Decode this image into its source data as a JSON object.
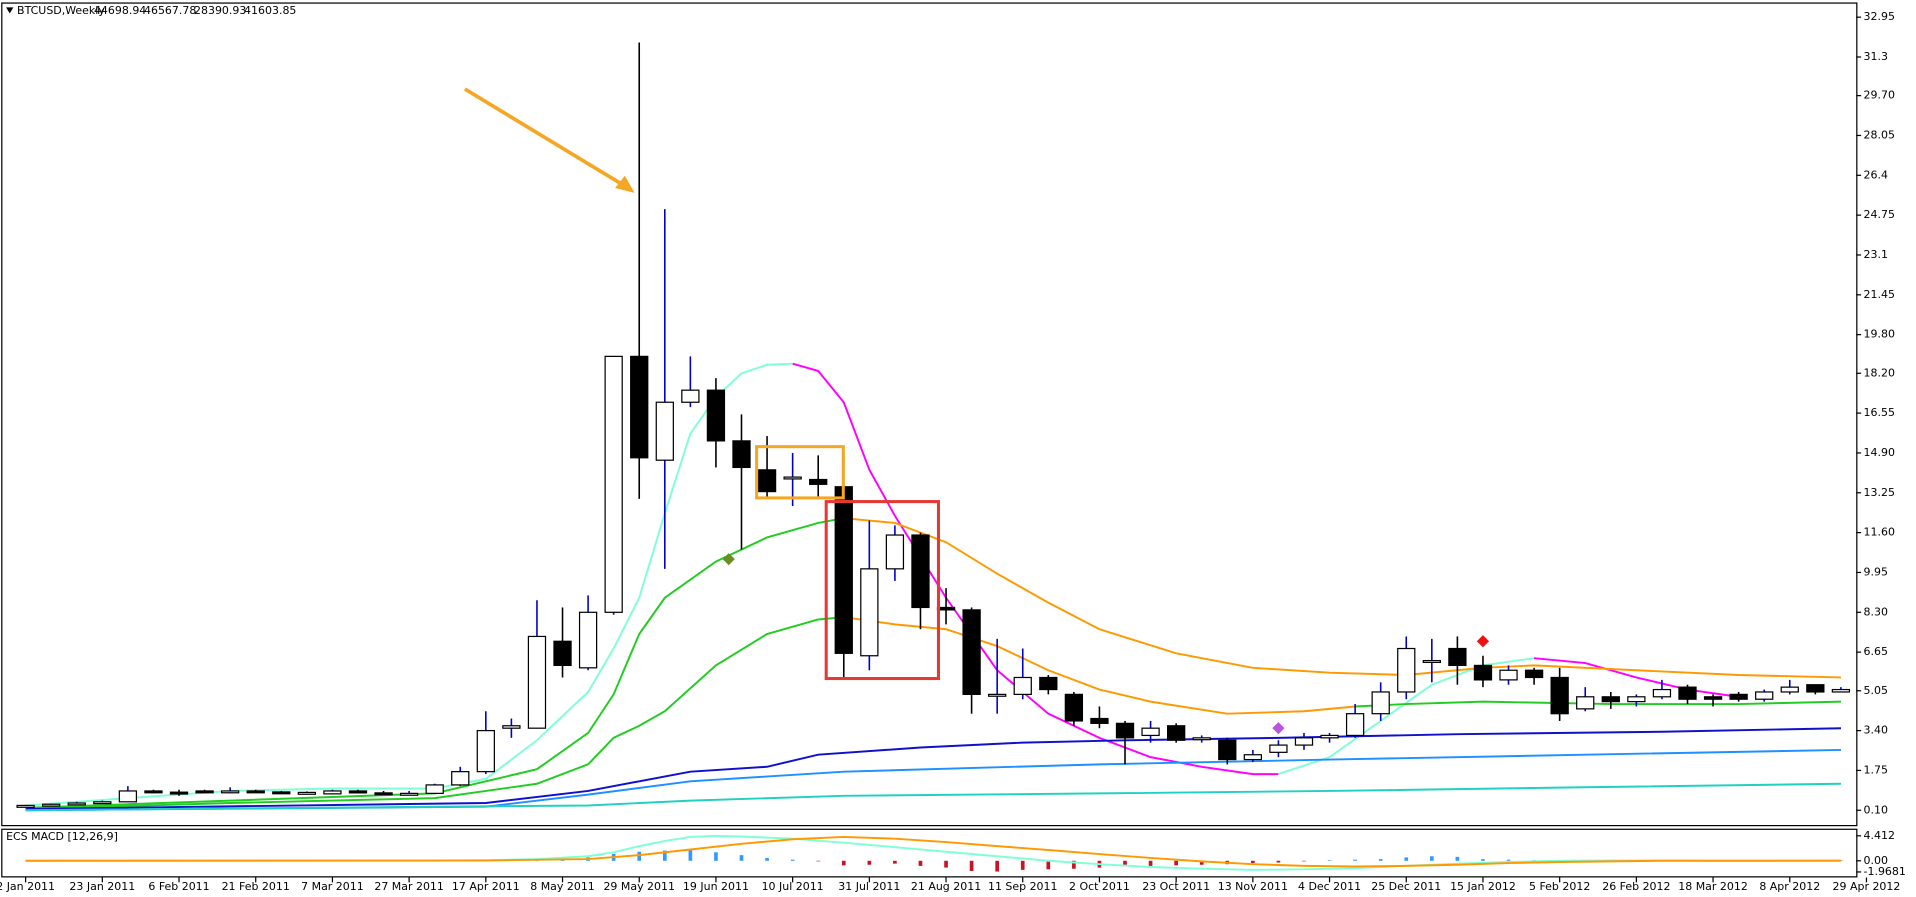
{
  "header": {
    "symbol": "BTCUSD,Weekly",
    "quote": [
      44698.94,
      46567.78,
      28390.93,
      41603.85
    ]
  },
  "chart_data": [
    {
      "type": "candlestick",
      "categories": [
        "2 Jan 2011",
        null,
        null,
        "23 Jan 2011",
        null,
        null,
        "6 Feb 2011",
        null,
        null,
        "21 Feb 2011",
        null,
        null,
        "7 Mar 2011",
        null,
        null,
        "27 Mar 2011",
        null,
        null,
        "17 Apr 2011",
        null,
        null,
        "8 May 2011",
        null,
        null,
        "29 May 2011",
        null,
        null,
        "19 Jun 2011",
        null,
        null,
        "10 Jul 2011",
        null,
        null,
        "31 Jul 2011",
        null,
        null,
        "21 Aug 2011",
        null,
        null,
        "11 Sep 2011",
        null,
        null,
        "2 Oct 2011",
        null,
        null,
        "23 Oct 2011",
        null,
        null,
        "13 Nov 2011",
        null,
        null,
        "4 Dec 2011",
        null,
        null,
        "25 Dec 2011",
        null,
        null,
        "15 Jan 2012",
        null,
        null,
        "5 Feb 2012",
        null,
        null,
        "26 Feb 2012",
        null,
        null,
        "18 Mar 2012",
        null,
        null,
        "8 Apr 2012",
        null,
        null,
        "29 Apr 2012"
      ],
      "open": [
        0.3,
        0.3,
        0.35,
        0.4,
        0.45,
        0.9,
        0.85,
        0.9,
        0.88,
        0.9,
        0.86,
        0.82,
        0.78,
        0.9,
        0.82,
        0.78,
        0.8,
        1.15,
        1.7,
        3.5,
        3.5,
        7.1,
        6.0,
        8.3,
        18.9,
        14.6,
        17.0,
        17.5,
        15.4,
        14.2,
        13.9,
        13.8,
        13.5,
        6.5,
        10.1,
        11.5,
        8.5,
        8.4,
        4.9,
        4.9,
        5.6,
        4.9,
        3.9,
        3.7,
        3.2,
        3.6,
        3.1,
        3.0,
        2.2,
        2.5,
        2.8,
        3.1,
        3.2,
        4.1,
        5.0,
        6.3,
        6.8,
        6.1,
        5.5,
        5.9,
        5.6,
        4.3,
        4.8,
        4.6,
        4.8,
        5.2,
        4.8,
        4.9,
        4.7,
        5.0,
        5.3,
        5.0,
        null
      ],
      "high": [
        0.32,
        0.38,
        0.45,
        0.5,
        1.1,
        0.95,
        0.95,
        0.95,
        1.05,
        0.95,
        0.9,
        0.88,
        0.95,
        0.95,
        0.9,
        0.9,
        1.2,
        1.9,
        4.2,
        3.9,
        8.8,
        8.5,
        9.0,
        18.9,
        31.9,
        25.0,
        18.9,
        18.0,
        16.5,
        15.6,
        14.9,
        14.8,
        14.9,
        12.1,
        11.9,
        11.6,
        9.3,
        8.5,
        7.2,
        6.8,
        5.7,
        5.0,
        4.4,
        3.8,
        3.8,
        3.7,
        3.2,
        3.1,
        2.6,
        3.0,
        3.3,
        3.3,
        4.5,
        5.4,
        7.3,
        7.2,
        7.3,
        6.5,
        6.1,
        6.0,
        6.0,
        5.2,
        5.0,
        4.9,
        5.5,
        5.3,
        4.9,
        5.0,
        5.1,
        5.5,
        5.3,
        5.2,
        null
      ],
      "low": [
        0.29,
        0.29,
        0.33,
        0.38,
        0.45,
        0.8,
        0.7,
        0.85,
        0.8,
        0.85,
        0.8,
        0.78,
        0.75,
        0.8,
        0.76,
        0.75,
        0.78,
        1.1,
        1.6,
        3.1,
        3.5,
        5.6,
        5.9,
        8.2,
        13.0,
        10.1,
        16.8,
        14.3,
        10.9,
        13.0,
        12.7,
        13.1,
        5.6,
        5.9,
        9.6,
        7.6,
        7.8,
        4.1,
        4.1,
        4.7,
        4.9,
        3.6,
        3.5,
        2.0,
        2.9,
        2.9,
        2.9,
        2.0,
        2.1,
        2.3,
        2.6,
        2.9,
        3.1,
        3.8,
        4.7,
        5.4,
        5.3,
        5.2,
        5.3,
        5.3,
        3.8,
        4.2,
        4.3,
        4.4,
        4.7,
        4.5,
        4.4,
        4.6,
        4.6,
        4.9,
        4.9,
        5.0,
        null
      ],
      "close": [
        0.3,
        0.35,
        0.4,
        0.45,
        0.9,
        0.85,
        0.8,
        0.88,
        0.9,
        0.86,
        0.82,
        0.84,
        0.9,
        0.82,
        0.78,
        0.8,
        1.15,
        1.7,
        3.4,
        3.6,
        7.3,
        6.1,
        8.3,
        18.9,
        14.7,
        17.0,
        17.5,
        15.4,
        14.3,
        13.3,
        13.9,
        13.6,
        6.6,
        10.1,
        11.5,
        8.5,
        8.4,
        4.9,
        4.9,
        5.6,
        5.1,
        3.8,
        3.7,
        3.1,
        3.5,
        3.0,
        3.1,
        2.2,
        2.4,
        2.8,
        3.1,
        3.2,
        4.1,
        5.0,
        6.8,
        6.3,
        6.1,
        5.5,
        5.9,
        5.6,
        4.1,
        4.8,
        4.6,
        4.8,
        5.1,
        4.7,
        4.7,
        4.7,
        5.0,
        5.2,
        5.0,
        5.1,
        null
      ],
      "up_color": "#ffffff",
      "down_color": "#000000",
      "up_wick": "#0000cc",
      "down_wick": "#000000",
      "ylim": [
        -0.51,
        33.56
      ],
      "yticks": [
        32.95,
        31.3,
        {
          "value": 29.7,
          "label": "29.70"
        },
        28.05,
        26.4,
        24.75,
        23.1,
        21.45,
        {
          "value": 19.8,
          "label": "19.80"
        },
        {
          "value": 18.2,
          "label": "18.20"
        },
        16.55,
        {
          "value": 14.9,
          "label": "14.90"
        },
        13.25,
        {
          "value": 11.6,
          "label": "11.60"
        },
        9.95,
        {
          "value": 8.3,
          "label": "8.30"
        },
        6.65,
        5.05,
        {
          "value": 3.4,
          "label": "3.40"
        },
        1.75,
        {
          "value": 0.1,
          "label": "0.10"
        }
      ],
      "lines": [
        {
          "color": "#7fffd4",
          "x": [
            0,
            4,
            8,
            12,
            16,
            18,
            20,
            21,
            22,
            23,
            24,
            25,
            26,
            27,
            28,
            29,
            30
          ],
          "values": [
            0.3,
            0.6,
            0.9,
            1.0,
            1.0,
            1.4,
            3.0,
            4.0,
            5.0,
            6.8,
            8.9,
            12.4,
            15.7,
            17.2,
            18.2,
            18.55,
            18.6
          ]
        },
        {
          "color": "#ff00ff",
          "x": [
            30,
            31,
            32,
            33,
            34,
            36,
            38,
            40,
            42,
            44,
            46,
            48,
            49
          ],
          "values": [
            18.6,
            18.3,
            17.0,
            14.2,
            12.3,
            8.9,
            5.9,
            4.1,
            3.1,
            2.3,
            1.9,
            1.6,
            1.6
          ]
        },
        {
          "color": "#7fffd4",
          "x": [
            49,
            51,
            53,
            55,
            57,
            59
          ],
          "values": [
            1.6,
            2.3,
            3.8,
            5.3,
            6.1,
            6.4
          ]
        },
        {
          "color": "#ff00ff",
          "x": [
            59,
            61,
            63,
            65,
            67
          ],
          "values": [
            6.4,
            6.2,
            5.6,
            5.1,
            4.8
          ]
        },
        {
          "color": "#22cc22",
          "x": [
            0,
            8,
            16,
            18,
            20,
            22,
            23,
            24,
            25,
            27,
            29,
            31,
            32
          ],
          "values": [
            0.2,
            0.5,
            0.8,
            1.3,
            1.8,
            3.3,
            4.9,
            7.4,
            8.9,
            10.4,
            11.4,
            12.0,
            12.2
          ]
        },
        {
          "color": "#ff9900",
          "x": [
            32,
            34,
            36,
            38,
            40,
            42,
            45,
            48,
            51,
            54,
            57,
            59,
            63,
            67,
            71
          ],
          "values": [
            12.2,
            12.0,
            11.2,
            9.9,
            8.7,
            7.6,
            6.6,
            6.0,
            5.8,
            5.7,
            6.0,
            6.1,
            5.9,
            5.7,
            5.6
          ]
        },
        {
          "color": "#22cc22",
          "x": [
            0,
            8,
            16,
            18,
            20,
            22,
            23,
            24,
            25,
            27,
            29,
            31,
            32
          ],
          "values": [
            0.15,
            0.4,
            0.6,
            0.9,
            1.2,
            2.0,
            3.1,
            3.6,
            4.2,
            6.1,
            7.4,
            8.0,
            8.1
          ]
        },
        {
          "color": "#ff9900",
          "x": [
            32,
            34,
            36,
            38,
            40,
            42,
            44,
            47,
            50,
            52
          ],
          "values": [
            8.1,
            7.8,
            7.6,
            6.9,
            5.9,
            5.1,
            4.6,
            4.1,
            4.2,
            4.4
          ]
        },
        {
          "color": "#22cc22",
          "x": [
            52,
            54,
            57,
            62,
            67,
            71
          ],
          "values": [
            4.4,
            4.5,
            4.6,
            4.5,
            4.5,
            4.6
          ]
        },
        {
          "color": "#1010cc",
          "x": [
            0,
            18,
            22,
            26,
            29,
            31,
            35,
            39,
            43,
            49,
            56,
            64,
            71
          ],
          "values": [
            0.15,
            0.4,
            0.9,
            1.7,
            1.9,
            2.4,
            2.7,
            2.9,
            3.0,
            3.1,
            3.25,
            3.35,
            3.5
          ]
        },
        {
          "color": "#1e90ff",
          "x": [
            0,
            18,
            22,
            26,
            32,
            42,
            51,
            61,
            71
          ],
          "values": [
            0.1,
            0.25,
            0.75,
            1.3,
            1.7,
            2.0,
            2.2,
            2.4,
            2.6
          ]
        },
        {
          "color": "#20d0c0",
          "x": [
            0,
            22,
            26,
            32,
            42,
            51,
            61,
            71
          ],
          "values": [
            0.1,
            0.3,
            0.5,
            0.7,
            0.8,
            0.9,
            1.05,
            1.2
          ]
        }
      ],
      "markers": [
        {
          "x": 27.5,
          "value": 10.5,
          "color": "#6b8e23"
        },
        {
          "x": 49,
          "value": 3.5,
          "color": "#bb55dd"
        },
        {
          "x": 57,
          "value": 7.1,
          "color": "#ee1111"
        }
      ]
    },
    {
      "type": "macd",
      "title": "ECS MACD [12,26,9]",
      "ylim": [
        -2.73,
        5.46
      ],
      "yticks": [
        4.412,
        {
          "value": 0,
          "label": "0.00"
        },
        -1.9681
      ],
      "histogram": [
        0.01,
        0.01,
        0.01,
        0.02,
        0.03,
        0.03,
        0.03,
        0.02,
        0.02,
        0.02,
        0.02,
        0.02,
        0.02,
        0.02,
        0.02,
        0.02,
        0.03,
        0.05,
        0.1,
        0.2,
        0.4,
        0.5,
        0.6,
        1.2,
        1.6,
        1.8,
        1.9,
        1.5,
        1.0,
        0.5,
        0.2,
        -0.1,
        -0.8,
        -0.7,
        -0.5,
        -0.9,
        -1.2,
        -1.8,
        -1.9,
        -1.6,
        -1.5,
        -1.4,
        -1.2,
        -1.0,
        -0.9,
        -0.8,
        -0.7,
        -0.6,
        -0.4,
        -0.3,
        -0.1,
        0.1,
        0.2,
        0.3,
        0.6,
        0.8,
        0.7,
        0.3,
        0.2,
        0.1,
        -0.2,
        -0.3,
        -0.2,
        -0.1,
        0,
        -0.1,
        -0.1,
        0,
        0.1,
        0.1,
        0.1,
        0.1,
        null
      ],
      "up_color": "#3399ff",
      "down_color": "#cc1122",
      "lines": [
        {
          "color": "#7fffd4",
          "x": [
            0,
            16,
            18,
            20,
            22,
            23,
            24,
            25,
            26,
            27,
            28,
            30,
            32,
            34,
            36,
            38,
            40,
            42,
            44,
            46,
            48,
            50,
            52,
            54,
            56,
            58,
            60,
            62,
            64,
            66,
            68,
            71
          ],
          "values": [
            0,
            0.02,
            0.1,
            0.3,
            0.8,
            1.5,
            2.6,
            3.5,
            4.2,
            4.4,
            4.3,
            3.9,
            3.2,
            2.4,
            1.6,
            0.8,
            0.0,
            -0.6,
            -1.1,
            -1.4,
            -1.6,
            -1.5,
            -1.3,
            -0.9,
            -0.5,
            -0.2,
            0,
            0.05,
            0.05,
            0.0,
            0.0,
            0.05
          ]
        },
        {
          "color": "#ff9900",
          "x": [
            0,
            18,
            22,
            24,
            26,
            28,
            30,
            32,
            34,
            36,
            38,
            40,
            42,
            44,
            46,
            48,
            50,
            52,
            54,
            56,
            58,
            60,
            64,
            68,
            71
          ],
          "values": [
            0,
            0.05,
            0.3,
            1.0,
            2.0,
            3.0,
            3.8,
            4.2,
            3.9,
            3.3,
            2.6,
            1.9,
            1.2,
            0.5,
            -0.1,
            -0.6,
            -0.9,
            -1.0,
            -0.9,
            -0.7,
            -0.4,
            -0.2,
            0,
            0,
            0
          ]
        }
      ]
    }
  ]
}
